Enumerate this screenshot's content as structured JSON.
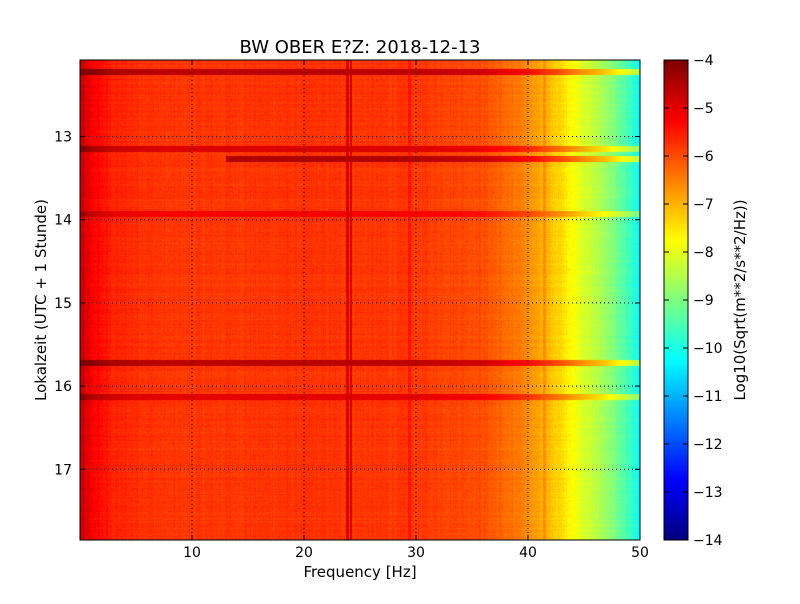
{
  "chart_data": {
    "type": "heatmap",
    "title": "BW OBER E?Z: 2018-12-13",
    "xlabel": "Frequency [Hz]",
    "ylabel": "Lokalzeit (UTC + 1 Stunde)",
    "xlim": [
      0,
      50
    ],
    "ylim": [
      12.08,
      17.85
    ],
    "y_inverted": true,
    "x_ticks": [
      10,
      20,
      30,
      40,
      50
    ],
    "x_tick_labels": [
      "10",
      "20",
      "30",
      "40",
      "50"
    ],
    "y_ticks": [
      13,
      14,
      15,
      16,
      17
    ],
    "y_tick_labels": [
      "13",
      "14",
      "15",
      "16",
      "17"
    ],
    "grid": true,
    "colormap": "jet",
    "colorbar": {
      "label": "Log10(Sqrt(m**2/s**2/Hz))",
      "range": [
        -14,
        -4
      ],
      "ticks": [
        -4,
        -5,
        -6,
        -7,
        -8,
        -9,
        -10,
        -11,
        -12,
        -13,
        -14
      ],
      "tick_labels": [
        "−4",
        "−5",
        "−6",
        "−7",
        "−8",
        "−9",
        "−10",
        "−11",
        "−12",
        "−13",
        "−14"
      ]
    },
    "spectrum_profile": {
      "description_units": "frequency Hz -> typical log10 amplitude",
      "frequency": [
        0,
        1,
        3,
        8,
        20,
        30,
        36,
        40,
        43,
        45,
        47,
        49,
        50
      ],
      "value": [
        -4.7,
        -5.2,
        -5.6,
        -5.8,
        -5.75,
        -5.8,
        -6.0,
        -6.6,
        -7.4,
        -8.1,
        -8.7,
        -9.6,
        -10.2
      ]
    },
    "narrowband_lines_hz": [
      23.9,
      24.2,
      29.4,
      41.5
    ],
    "strong_time_bands": [
      {
        "time": 12.22,
        "f_start": 0,
        "f_end": 50,
        "value": -4.6
      },
      {
        "time": 13.15,
        "f_start": 0,
        "f_end": 50,
        "value": -4.9
      },
      {
        "time": 13.27,
        "f_start": 13,
        "f_end": 50,
        "value": -4.5
      },
      {
        "time": 13.93,
        "f_start": 0,
        "f_end": 50,
        "value": -5.2
      },
      {
        "time": 15.72,
        "f_start": 0,
        "f_end": 50,
        "value": -4.6
      },
      {
        "time": 16.13,
        "f_start": 0,
        "f_end": 50,
        "value": -5.0
      }
    ]
  }
}
